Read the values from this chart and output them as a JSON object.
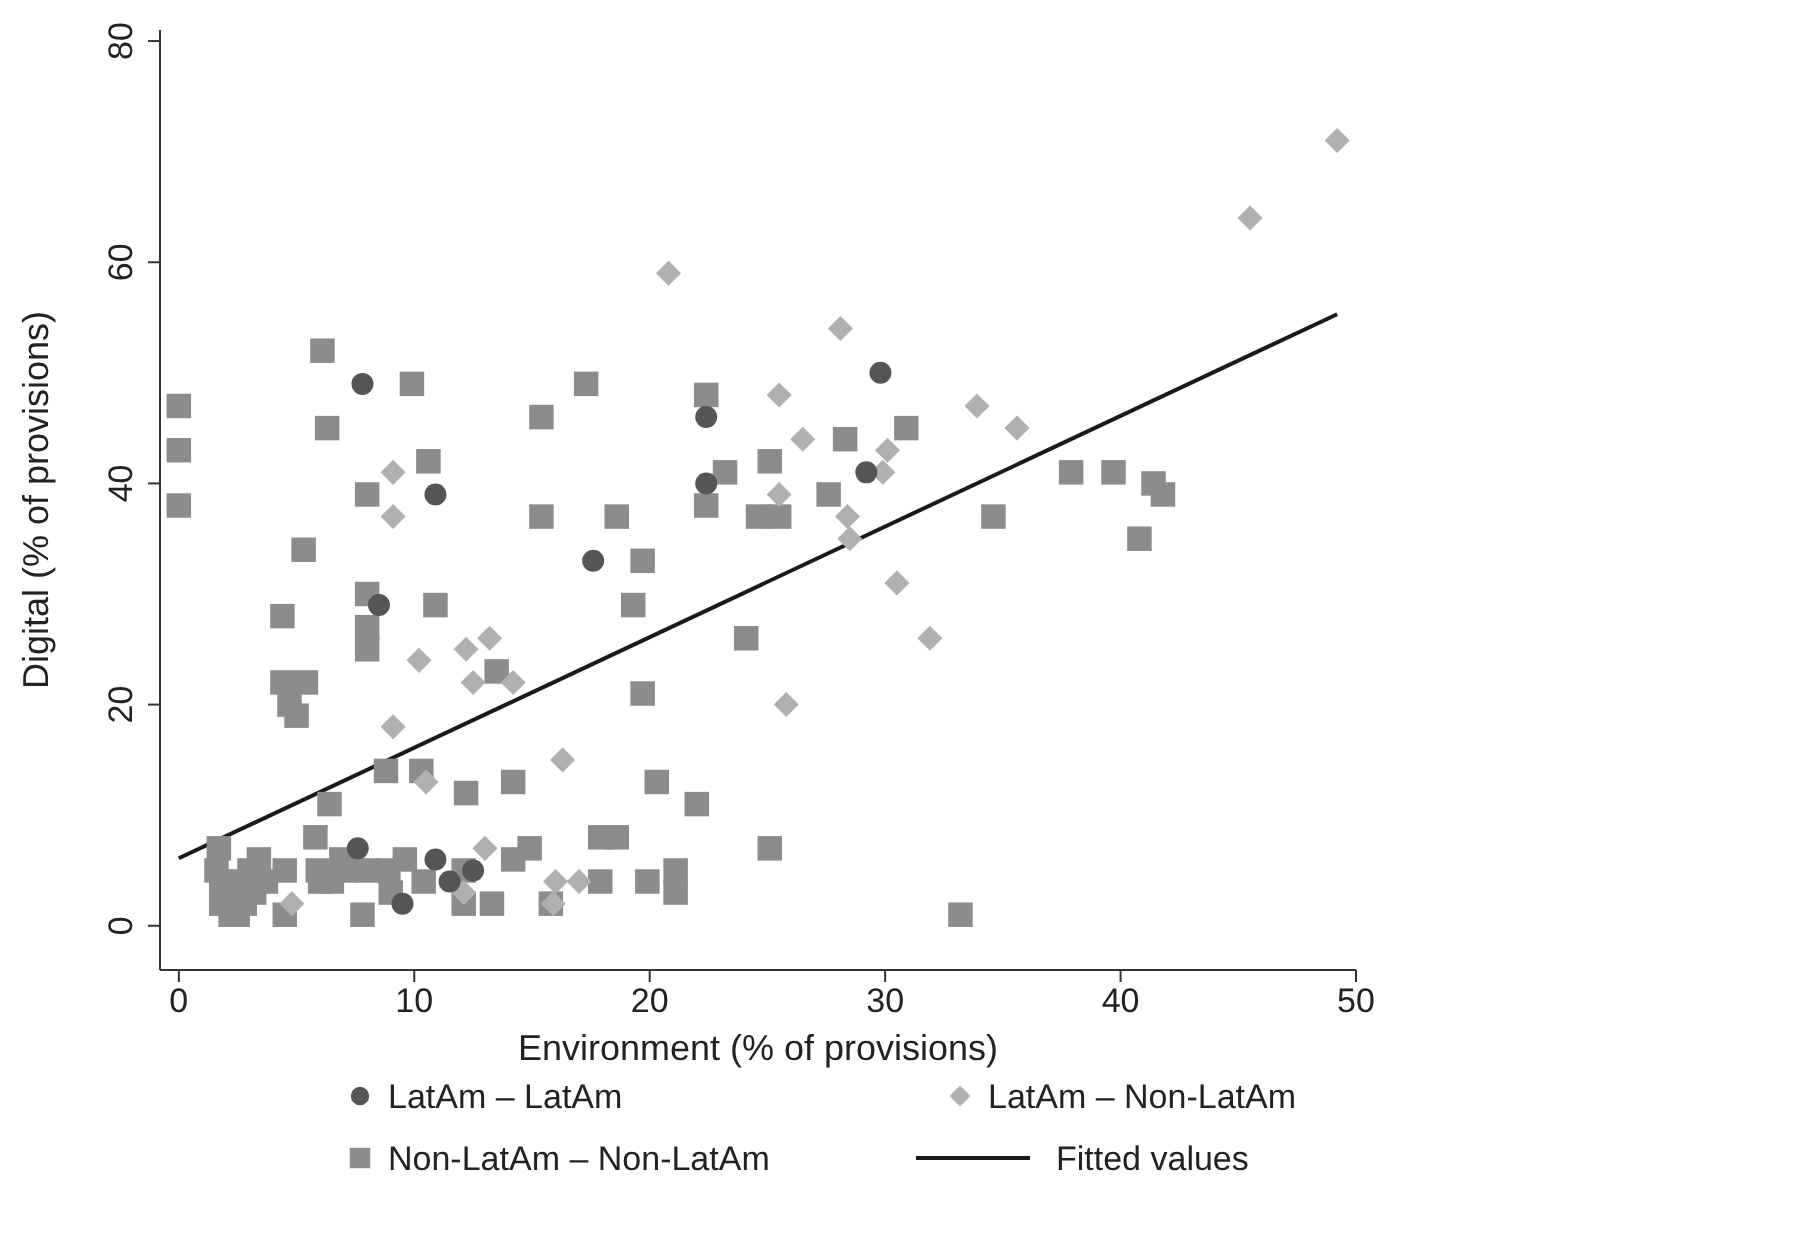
{
  "chart_data": {
    "type": "scatter",
    "xlabel": "Environment (% of provisions)",
    "ylabel": "Digital (% of provisions)",
    "xlim": [
      -0.8,
      50
    ],
    "ylim": [
      -4,
      81
    ],
    "xticks": [
      0,
      10,
      20,
      30,
      40,
      50
    ],
    "yticks": [
      0,
      20,
      40,
      60,
      80
    ],
    "grid": false,
    "legend": "bottom",
    "series": [
      {
        "name": "LatAm – LatAm",
        "color": "#555555",
        "marker": "circle",
        "x": [
          7.8,
          8.5,
          10.9,
          7.6,
          9.5,
          10.9,
          11.5,
          12.5,
          17.6,
          22.4,
          22.4,
          29.2,
          29.8
        ],
        "values": [
          49,
          29,
          39,
          7,
          2,
          6,
          4,
          5,
          33,
          46,
          40,
          41,
          50
        ]
      },
      {
        "name": "LatAm – Non-LatAm",
        "color": "#b0b0b0",
        "marker": "diamond",
        "x": [
          4.8,
          9.1,
          9.1,
          9.1,
          10.2,
          10.5,
          12.1,
          12.2,
          12.5,
          13.0,
          13.2,
          14.2,
          15.9,
          16.0,
          16.3,
          17.0,
          20.8,
          25.5,
          25.5,
          25.8,
          26.5,
          28.1,
          28.4,
          28.5,
          29.9,
          30.1,
          30.5,
          31.9,
          33.9,
          35.6,
          45.5,
          49.2
        ],
        "values": [
          2,
          41,
          37,
          18,
          24,
          13,
          3,
          25,
          22,
          7,
          26,
          22,
          2,
          4,
          15,
          4,
          59,
          48,
          39,
          20,
          44,
          54,
          37,
          35,
          41,
          43,
          31,
          26,
          47,
          45,
          64,
          71
        ]
      },
      {
        "name": "Non-LatAm – Non-LatAm",
        "color": "#8c8c8c",
        "marker": "square",
        "x": [
          0,
          0,
          0,
          1.6,
          1.7,
          1.8,
          1.8,
          2.2,
          2.5,
          2.6,
          2.8,
          3.0,
          3.2,
          3.4,
          3.7,
          4.4,
          4.4,
          4.5,
          4.5,
          4.7,
          5.0,
          5.3,
          5.4,
          5.8,
          5.9,
          6.0,
          6.1,
          6.3,
          6.4,
          6.5,
          6.9,
          7.1,
          7.8,
          8.0,
          8.0,
          8.0,
          8.0,
          8.0,
          8.8,
          8.9,
          9.0,
          9.6,
          9.9,
          10.3,
          10.6,
          10.9,
          10.4,
          12.1,
          12.2,
          12.1,
          13.3,
          13.5,
          14.2,
          14.2,
          14.9,
          15.4,
          15.4,
          15.8,
          17.3,
          17.9,
          17.9,
          18.6,
          18.6,
          19.3,
          19.7,
          19.7,
          19.9,
          20.3,
          21.1,
          21.1,
          22.0,
          22.4,
          22.4,
          23.2,
          24.1,
          24.6,
          25.1,
          25.1,
          25.5,
          27.6,
          28.3,
          30.9,
          33.2,
          34.6,
          37.9,
          39.7,
          40.8,
          41.4,
          41.8
        ],
        "values": [
          47,
          43,
          38,
          5,
          7,
          4,
          2,
          1,
          1,
          4,
          2,
          5,
          3,
          6,
          4,
          28,
          22,
          1,
          5,
          20,
          19,
          34,
          22,
          8,
          5,
          4,
          52,
          45,
          11,
          4,
          6,
          5,
          1,
          39,
          30,
          27,
          25,
          5,
          14,
          5,
          3,
          6,
          49,
          14,
          42,
          29,
          4,
          2,
          12,
          5,
          2,
          23,
          13,
          6,
          7,
          46,
          37,
          2,
          49,
          8,
          4,
          37,
          8,
          29,
          33,
          21,
          4,
          13,
          5,
          3,
          11,
          48,
          38,
          41,
          26,
          37,
          42,
          7,
          37,
          39,
          44,
          45,
          1,
          37,
          41,
          41,
          35,
          40,
          39
        ]
      },
      {
        "name": "Fitted values",
        "type": "line",
        "color": "#1a1a1a",
        "marker": "none",
        "line_style": "solid",
        "x": [
          0,
          49.2
        ],
        "values": [
          6.1,
          55.3
        ]
      }
    ]
  }
}
